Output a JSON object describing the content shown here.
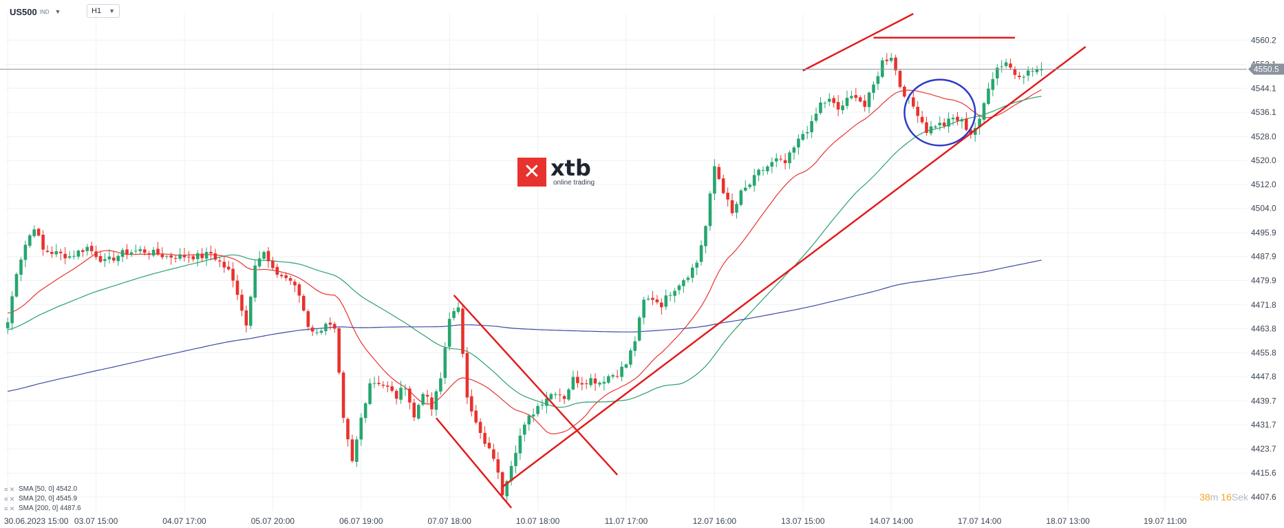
{
  "header": {
    "symbol": "US500",
    "symbol_tag": "IND",
    "symbol_caret": "▼",
    "timeframe": "H1",
    "timeframe_caret": "▼"
  },
  "logo": {
    "mark": "✕",
    "brand": "xtb",
    "tagline": "online trading"
  },
  "legend": [
    {
      "icon": "≡ ✕",
      "label": "SMA [50, 0] 4542.0"
    },
    {
      "icon": "≡ ✕",
      "label": "SMA [20, 0] 4545.9"
    },
    {
      "icon": "≡ ✕",
      "label": "SMA [200, 0] 4487.6"
    }
  ],
  "timer": {
    "minutes": "38",
    "min_unit": "m",
    "seconds": "16",
    "sec_unit": "Sek"
  },
  "colors": {
    "up": "#26a66f",
    "down": "#e8322e",
    "sma20": "#e8322e",
    "sma50": "#2aa06b",
    "sma200": "#3c4aa5",
    "drawing": "#e21b1b",
    "circle": "#2d39c8",
    "grid": "#eef0f3",
    "axis_text": "#3a4452",
    "price_tag": "#8a929c"
  },
  "chart_data": {
    "type": "candlestick",
    "symbol": "US500",
    "timeframe": "H1",
    "ylim": [
      4403,
      4569
    ],
    "y_ticks": [
      "4560.2",
      "4552.1",
      "4544.1",
      "4536.1",
      "4528.0",
      "4520.0",
      "4512.0",
      "4504.0",
      "4495.9",
      "4487.9",
      "4479.9",
      "4471.8",
      "4463.8",
      "4455.8",
      "4447.8",
      "4439.7",
      "4431.7",
      "4423.7",
      "4415.6",
      "4407.6"
    ],
    "x_ticks": [
      "30.06.2023 15:00",
      "03.07 15:00",
      "04.07 17:00",
      "05.07 20:00",
      "06.07 19:00",
      "07.07 18:00",
      "10.07 18:00",
      "11.07 17:00",
      "12.07 16:00",
      "13.07 15:00",
      "14.07 14:00",
      "17.07 14:00",
      "18.07 13:00",
      "19.07 11:00"
    ],
    "x_tick_index": [
      0,
      20,
      40,
      60,
      80,
      100,
      120,
      140,
      160,
      180,
      200,
      220,
      240,
      262
    ],
    "current_price": "4550.5",
    "waypoints": [
      [
        0,
        4466
      ],
      [
        2,
        4483
      ],
      [
        4,
        4492
      ],
      [
        6,
        4498
      ],
      [
        8,
        4490
      ],
      [
        14,
        4488
      ],
      [
        18,
        4491
      ],
      [
        22,
        4486
      ],
      [
        26,
        4489
      ],
      [
        30,
        4490
      ],
      [
        36,
        4488
      ],
      [
        44,
        4488
      ],
      [
        46,
        4489
      ],
      [
        48,
        4486
      ],
      [
        50,
        4483
      ],
      [
        52,
        4476
      ],
      [
        54,
        4465
      ],
      [
        56,
        4486
      ],
      [
        58,
        4489
      ],
      [
        60,
        4483
      ],
      [
        64,
        4480
      ],
      [
        66,
        4475
      ],
      [
        68,
        4465
      ],
      [
        70,
        4462
      ],
      [
        72,
        4466
      ],
      [
        74,
        4463
      ],
      [
        76,
        4433
      ],
      [
        78,
        4419
      ],
      [
        80,
        4434
      ],
      [
        82,
        4446
      ],
      [
        84,
        4446
      ],
      [
        86,
        4444
      ],
      [
        88,
        4441
      ],
      [
        90,
        4445
      ],
      [
        92,
        4434
      ],
      [
        94,
        4443
      ],
      [
        96,
        4437
      ],
      [
        98,
        4447
      ],
      [
        100,
        4468
      ],
      [
        102,
        4470
      ],
      [
        104,
        4442
      ],
      [
        106,
        4432
      ],
      [
        108,
        4425
      ],
      [
        110,
        4421
      ],
      [
        112,
        4409
      ],
      [
        114,
        4419
      ],
      [
        116,
        4428
      ],
      [
        118,
        4434
      ],
      [
        120,
        4438
      ],
      [
        122,
        4441
      ],
      [
        124,
        4443
      ],
      [
        126,
        4441
      ],
      [
        128,
        4447
      ],
      [
        130,
        4446
      ],
      [
        132,
        4447
      ],
      [
        134,
        4446
      ],
      [
        136,
        4448
      ],
      [
        138,
        4449
      ],
      [
        140,
        4452
      ],
      [
        142,
        4460
      ],
      [
        144,
        4473
      ],
      [
        146,
        4474
      ],
      [
        148,
        4472
      ],
      [
        150,
        4476
      ],
      [
        152,
        4479
      ],
      [
        154,
        4482
      ],
      [
        156,
        4486
      ],
      [
        158,
        4498
      ],
      [
        160,
        4518
      ],
      [
        162,
        4510
      ],
      [
        164,
        4502
      ],
      [
        166,
        4509
      ],
      [
        168,
        4512
      ],
      [
        170,
        4516
      ],
      [
        172,
        4518
      ],
      [
        174,
        4520
      ],
      [
        176,
        4519
      ],
      [
        178,
        4524
      ],
      [
        180,
        4529
      ],
      [
        182,
        4532
      ],
      [
        184,
        4539
      ],
      [
        186,
        4540
      ],
      [
        188,
        4537
      ],
      [
        190,
        4540
      ],
      [
        192,
        4542
      ],
      [
        194,
        4538
      ],
      [
        196,
        4545
      ],
      [
        198,
        4553
      ],
      [
        200,
        4555
      ],
      [
        202,
        4545
      ],
      [
        204,
        4540
      ],
      [
        206,
        4536
      ],
      [
        208,
        4530
      ],
      [
        210,
        4532
      ],
      [
        212,
        4532
      ],
      [
        214,
        4534
      ],
      [
        216,
        4533
      ],
      [
        218,
        4529
      ],
      [
        220,
        4533
      ],
      [
        222,
        4545
      ],
      [
        224,
        4551
      ],
      [
        226,
        4553
      ],
      [
        228,
        4549
      ],
      [
        230,
        4549
      ],
      [
        232,
        4550
      ],
      [
        234,
        4550.5
      ]
    ],
    "smas": [
      {
        "name": "SMA [20, 0]",
        "value": "4545.9",
        "period": 20
      },
      {
        "name": "SMA [50, 0]",
        "value": "4542.0",
        "period": 50
      },
      {
        "name": "SMA [200, 0]",
        "value": "4487.6",
        "period": 200
      }
    ],
    "drawings": [
      {
        "kind": "line",
        "from": [
          180,
          4550
        ],
        "to": [
          205,
          4569
        ]
      },
      {
        "kind": "line",
        "from": [
          196,
          4561
        ],
        "to": [
          228,
          4561
        ]
      },
      {
        "kind": "line",
        "from": [
          112,
          4411
        ],
        "to": [
          244,
          4558
        ]
      },
      {
        "kind": "line",
        "from": [
          101,
          4475
        ],
        "to": [
          138,
          4415
        ]
      },
      {
        "kind": "line",
        "from": [
          97,
          4434
        ],
        "to": [
          114,
          4404
        ]
      },
      {
        "kind": "ellipse",
        "center": [
          211,
          4536
        ],
        "radius_bars": 8,
        "radius_price": 11
      }
    ]
  }
}
